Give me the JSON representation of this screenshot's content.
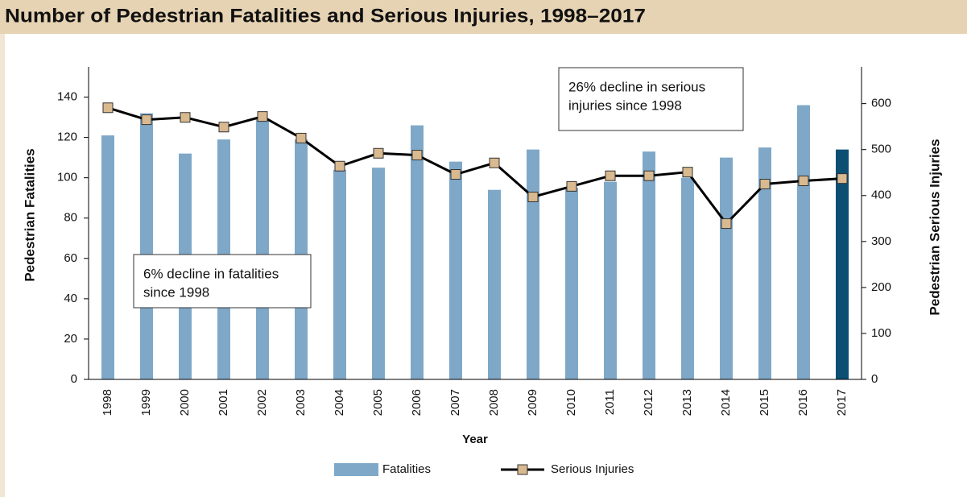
{
  "chart_data": {
    "type": "bar-line",
    "title": "Number of Pedestrian Fatalities and Serious Injuries, 1998–2017",
    "x_label": "Year",
    "y_label": "Pedestrian Fatalities",
    "y2_label": "Pedestrian Serious Injuries",
    "categories": [
      "1998",
      "1999",
      "2000",
      "2001",
      "2002",
      "2003",
      "2004",
      "2005",
      "2006",
      "2007",
      "2008",
      "2009",
      "2010",
      "2011",
      "2012",
      "2013",
      "2014",
      "2015",
      "2016",
      "2017"
    ],
    "series": [
      {
        "name": "Fatalities",
        "type": "bar",
        "color": "#7fa8c8",
        "colors": [
          "#7fa8c8",
          "#7fa8c8",
          "#7fa8c8",
          "#7fa8c8",
          "#7fa8c8",
          "#7fa8c8",
          "#7fa8c8",
          "#7fa8c8",
          "#7fa8c8",
          "#7fa8c8",
          "#7fa8c8",
          "#7fa8c8",
          "#7fa8c8",
          "#7fa8c8",
          "#7fa8c8",
          "#7fa8c8",
          "#7fa8c8",
          "#7fa8c8",
          "#7fa8c8",
          "#0d4f73"
        ],
        "values": [
          121,
          132,
          112,
          119,
          129,
          119,
          104,
          105,
          126,
          108,
          94,
          114,
          95,
          98,
          113,
          100,
          110,
          115,
          136,
          114
        ]
      },
      {
        "name": "Serious Injuries",
        "type": "line",
        "axis": "y2",
        "color": "#000000",
        "marker_color": "#d9b98f",
        "values": [
          591,
          565,
          570,
          549,
          572,
          525,
          464,
          492,
          488,
          446,
          471,
          397,
          420,
          443,
          443,
          451,
          339,
          425,
          432,
          437
        ]
      }
    ],
    "ylim": [
      0,
      155
    ],
    "yticks": [
      0,
      20,
      40,
      60,
      80,
      100,
      120,
      140
    ],
    "y2lim": [
      0,
      680
    ],
    "y2ticks": [
      0,
      100,
      200,
      300,
      400,
      500,
      600
    ],
    "legend": "bottom",
    "annotations": [
      {
        "lines": [
          "26% decline in serious",
          "injuries since 1998"
        ]
      },
      {
        "lines": [
          "6% decline in fatalities",
          "since 1998"
        ]
      }
    ]
  }
}
